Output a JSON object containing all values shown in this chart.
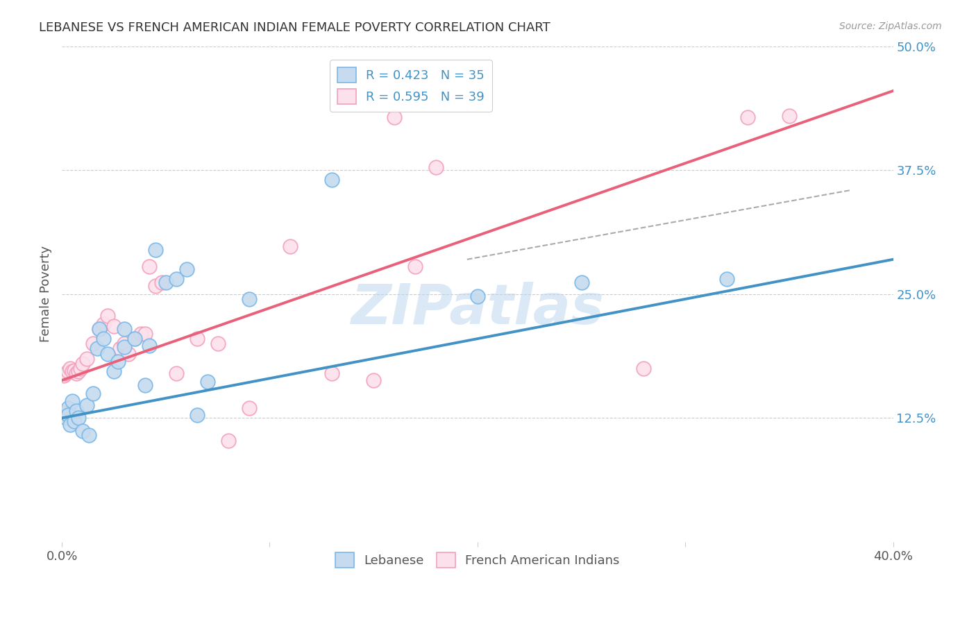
{
  "title": "LEBANESE VS FRENCH AMERICAN INDIAN FEMALE POVERTY CORRELATION CHART",
  "source": "Source: ZipAtlas.com",
  "ylabel": "Female Poverty",
  "x_min": 0.0,
  "x_max": 0.4,
  "y_min": 0.0,
  "y_max": 0.5,
  "x_ticks": [
    0.0,
    0.1,
    0.2,
    0.3,
    0.4
  ],
  "x_tick_labels": [
    "0.0%",
    "",
    "",
    "",
    "40.0%"
  ],
  "y_ticks": [
    0.125,
    0.25,
    0.375,
    0.5
  ],
  "y_tick_labels": [
    "12.5%",
    "25.0%",
    "37.5%",
    "50.0%"
  ],
  "legend_labels": [
    "R = 0.423   N = 35",
    "R = 0.595   N = 39"
  ],
  "legend_bottom_labels": [
    "Lebanese",
    "French American Indians"
  ],
  "blue_edge": "#7ab8e8",
  "pink_edge": "#f4a0bc",
  "blue_face": "#c6dbef",
  "pink_face": "#fce0eb",
  "line_blue": "#4292c6",
  "line_pink": "#e8607a",
  "tick_blue": "#4292c6",
  "watermark": "ZIPatlas",
  "lebanese_x": [
    0.001,
    0.002,
    0.003,
    0.003,
    0.004,
    0.005,
    0.006,
    0.007,
    0.008,
    0.01,
    0.012,
    0.013,
    0.015,
    0.017,
    0.018,
    0.02,
    0.022,
    0.025,
    0.027,
    0.03,
    0.03,
    0.035,
    0.04,
    0.042,
    0.045,
    0.05,
    0.055,
    0.06,
    0.065,
    0.07,
    0.09,
    0.13,
    0.2,
    0.25,
    0.32
  ],
  "lebanese_y": [
    0.13,
    0.125,
    0.135,
    0.128,
    0.118,
    0.142,
    0.122,
    0.132,
    0.125,
    0.112,
    0.138,
    0.108,
    0.15,
    0.195,
    0.215,
    0.205,
    0.19,
    0.172,
    0.182,
    0.197,
    0.215,
    0.205,
    0.158,
    0.198,
    0.295,
    0.262,
    0.265,
    0.275,
    0.128,
    0.162,
    0.245,
    0.365,
    0.248,
    0.262,
    0.265
  ],
  "french_x": [
    0.001,
    0.002,
    0.003,
    0.004,
    0.005,
    0.006,
    0.007,
    0.008,
    0.009,
    0.01,
    0.012,
    0.015,
    0.018,
    0.02,
    0.022,
    0.025,
    0.028,
    0.03,
    0.032,
    0.035,
    0.038,
    0.04,
    0.042,
    0.045,
    0.048,
    0.055,
    0.065,
    0.075,
    0.08,
    0.09,
    0.11,
    0.13,
    0.15,
    0.16,
    0.17,
    0.18,
    0.28,
    0.33,
    0.35
  ],
  "french_y": [
    0.168,
    0.17,
    0.172,
    0.175,
    0.172,
    0.173,
    0.17,
    0.172,
    0.175,
    0.18,
    0.185,
    0.2,
    0.215,
    0.22,
    0.228,
    0.218,
    0.195,
    0.2,
    0.19,
    0.205,
    0.21,
    0.21,
    0.278,
    0.258,
    0.262,
    0.17,
    0.205,
    0.2,
    0.102,
    0.135,
    0.298,
    0.17,
    0.163,
    0.428,
    0.278,
    0.378,
    0.175,
    0.428,
    0.43
  ],
  "blue_line_x": [
    0.0,
    0.4
  ],
  "blue_line_y": [
    0.125,
    0.285
  ],
  "pink_line_x": [
    0.0,
    0.4
  ],
  "pink_line_y": [
    0.163,
    0.455
  ],
  "dashed_line_x": [
    0.195,
    0.38
  ],
  "dashed_line_y": [
    0.285,
    0.355
  ]
}
